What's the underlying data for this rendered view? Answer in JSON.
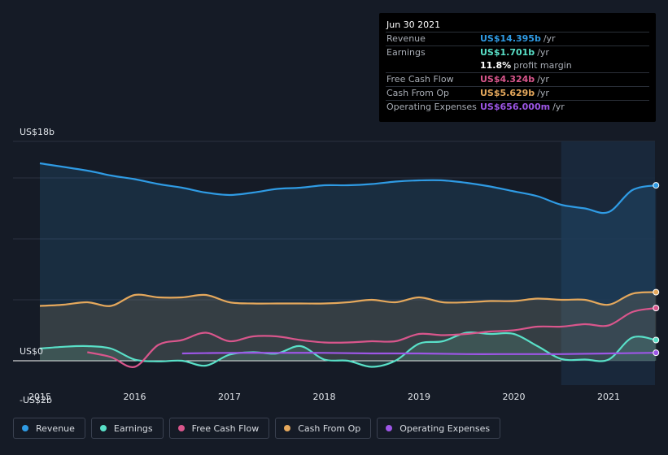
{
  "tooltip": {
    "date": "Jun 30 2021",
    "rows": [
      {
        "label": "Revenue",
        "value": "US$14.395b",
        "unit": "/yr",
        "color": "#2f9be4"
      },
      {
        "label": "Earnings",
        "value": "US$1.701b",
        "unit": "/yr",
        "color": "#59e0c8"
      },
      {
        "label": "",
        "value": "11.8%",
        "unit": "profit margin",
        "color": "#ffffff"
      },
      {
        "label": "Free Cash Flow",
        "value": "US$4.324b",
        "unit": "/yr",
        "color": "#d9568c"
      },
      {
        "label": "Cash From Op",
        "value": "US$5.629b",
        "unit": "/yr",
        "color": "#e5a85c"
      },
      {
        "label": "Operating Expenses",
        "value": "US$656.000m",
        "unit": "/yr",
        "color": "#9d56e6"
      }
    ]
  },
  "legend": [
    {
      "label": "Revenue",
      "color": "#2f9be4"
    },
    {
      "label": "Earnings",
      "color": "#59e0c8"
    },
    {
      "label": "Free Cash Flow",
      "color": "#d9568c"
    },
    {
      "label": "Cash From Op",
      "color": "#e5a85c"
    },
    {
      "label": "Operating Expenses",
      "color": "#9d56e6"
    }
  ],
  "chart_data": {
    "type": "line",
    "title": "",
    "xlabel": "",
    "ylabel": "",
    "y_tick_labels": [
      {
        "value": 18,
        "label": "US$18b"
      },
      {
        "value": 0,
        "label": "US$0"
      },
      {
        "value": -2,
        "label": "-US$2b"
      }
    ],
    "x_tick_labels": [
      "2015",
      "2016",
      "2017",
      "2018",
      "2019",
      "2020",
      "2021"
    ],
    "xlim": [
      2015.0,
      2021.5
    ],
    "ylim": [
      -2,
      18
    ],
    "forecast_shade_from": 2020.5,
    "grid": true,
    "legend_position": "bottom",
    "series": [
      {
        "name": "Revenue",
        "color": "#2f9be4",
        "filled": true,
        "points": [
          [
            2015.0,
            16.2
          ],
          [
            2015.5,
            15.6
          ],
          [
            2015.75,
            15.2
          ],
          [
            2016.0,
            14.9
          ],
          [
            2016.25,
            14.5
          ],
          [
            2016.5,
            14.2
          ],
          [
            2016.75,
            13.8
          ],
          [
            2017.0,
            13.6
          ],
          [
            2017.25,
            13.8
          ],
          [
            2017.5,
            14.1
          ],
          [
            2017.75,
            14.2
          ],
          [
            2018.0,
            14.4
          ],
          [
            2018.25,
            14.4
          ],
          [
            2018.5,
            14.5
          ],
          [
            2018.75,
            14.7
          ],
          [
            2019.0,
            14.8
          ],
          [
            2019.25,
            14.8
          ],
          [
            2019.5,
            14.6
          ],
          [
            2019.75,
            14.3
          ],
          [
            2020.0,
            13.9
          ],
          [
            2020.25,
            13.5
          ],
          [
            2020.5,
            12.8
          ],
          [
            2020.75,
            12.5
          ],
          [
            2021.0,
            12.2
          ],
          [
            2021.25,
            14.0
          ],
          [
            2021.5,
            14.395
          ]
        ]
      },
      {
        "name": "Earnings",
        "color": "#59e0c8",
        "filled": true,
        "points": [
          [
            2015.0,
            1.0
          ],
          [
            2015.25,
            1.15
          ],
          [
            2015.5,
            1.2
          ],
          [
            2015.75,
            1.0
          ],
          [
            2016.0,
            0.1
          ],
          [
            2016.25,
            -0.05
          ],
          [
            2016.5,
            0.0
          ],
          [
            2016.75,
            -0.4
          ],
          [
            2017.0,
            0.5
          ],
          [
            2017.25,
            0.7
          ],
          [
            2017.5,
            0.6
          ],
          [
            2017.75,
            1.2
          ],
          [
            2018.0,
            0.1
          ],
          [
            2018.25,
            0.0
          ],
          [
            2018.5,
            -0.5
          ],
          [
            2018.75,
            0.0
          ],
          [
            2019.0,
            1.4
          ],
          [
            2019.25,
            1.6
          ],
          [
            2019.5,
            2.3
          ],
          [
            2019.75,
            2.2
          ],
          [
            2020.0,
            2.2
          ],
          [
            2020.25,
            1.2
          ],
          [
            2020.5,
            0.15
          ],
          [
            2020.75,
            0.1
          ],
          [
            2021.0,
            0.1
          ],
          [
            2021.25,
            1.9
          ],
          [
            2021.5,
            1.701
          ]
        ]
      },
      {
        "name": "Free Cash Flow",
        "color": "#d9568c",
        "filled": false,
        "points": [
          [
            2015.5,
            0.7
          ],
          [
            2015.75,
            0.3
          ],
          [
            2016.0,
            -0.5
          ],
          [
            2016.25,
            1.3
          ],
          [
            2016.5,
            1.7
          ],
          [
            2016.75,
            2.3
          ],
          [
            2017.0,
            1.6
          ],
          [
            2017.25,
            2.0
          ],
          [
            2017.5,
            2.0
          ],
          [
            2017.75,
            1.7
          ],
          [
            2018.0,
            1.5
          ],
          [
            2018.25,
            1.5
          ],
          [
            2018.5,
            1.6
          ],
          [
            2018.75,
            1.6
          ],
          [
            2019.0,
            2.2
          ],
          [
            2019.25,
            2.1
          ],
          [
            2019.5,
            2.2
          ],
          [
            2019.75,
            2.4
          ],
          [
            2020.0,
            2.5
          ],
          [
            2020.25,
            2.8
          ],
          [
            2020.5,
            2.8
          ],
          [
            2020.75,
            3.0
          ],
          [
            2021.0,
            2.9
          ],
          [
            2021.25,
            4.0
          ],
          [
            2021.5,
            4.324
          ]
        ]
      },
      {
        "name": "Cash From Op",
        "color": "#e5a85c",
        "filled": true,
        "points": [
          [
            2015.0,
            4.5
          ],
          [
            2015.25,
            4.6
          ],
          [
            2015.5,
            4.8
          ],
          [
            2015.75,
            4.5
          ],
          [
            2016.0,
            5.4
          ],
          [
            2016.25,
            5.2
          ],
          [
            2016.5,
            5.2
          ],
          [
            2016.75,
            5.4
          ],
          [
            2017.0,
            4.8
          ],
          [
            2017.25,
            4.7
          ],
          [
            2017.5,
            4.7
          ],
          [
            2017.75,
            4.7
          ],
          [
            2018.0,
            4.7
          ],
          [
            2018.25,
            4.8
          ],
          [
            2018.5,
            5.0
          ],
          [
            2018.75,
            4.8
          ],
          [
            2019.0,
            5.2
          ],
          [
            2019.25,
            4.8
          ],
          [
            2019.5,
            4.8
          ],
          [
            2019.75,
            4.9
          ],
          [
            2020.0,
            4.9
          ],
          [
            2020.25,
            5.1
          ],
          [
            2020.5,
            5.0
          ],
          [
            2020.75,
            5.0
          ],
          [
            2021.0,
            4.6
          ],
          [
            2021.25,
            5.5
          ],
          [
            2021.5,
            5.629
          ]
        ]
      },
      {
        "name": "Operating Expenses",
        "color": "#9d56e6",
        "filled": false,
        "points": [
          [
            2016.5,
            0.6
          ],
          [
            2017.0,
            0.65
          ],
          [
            2017.5,
            0.65
          ],
          [
            2018.0,
            0.65
          ],
          [
            2018.5,
            0.6
          ],
          [
            2019.0,
            0.6
          ],
          [
            2019.5,
            0.55
          ],
          [
            2020.0,
            0.55
          ],
          [
            2020.5,
            0.55
          ],
          [
            2021.0,
            0.6
          ],
          [
            2021.5,
            0.656
          ]
        ]
      }
    ]
  }
}
